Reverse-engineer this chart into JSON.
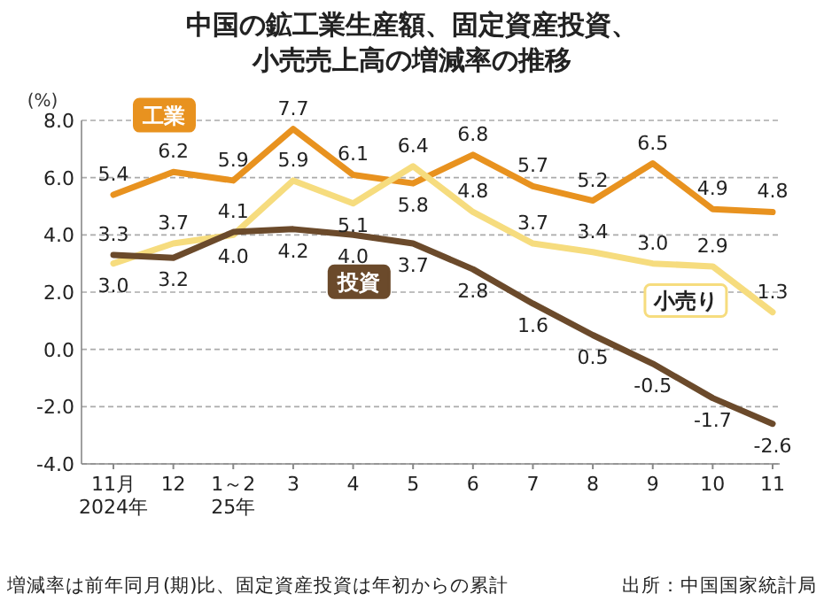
{
  "chart_data": {
    "type": "line",
    "title": "中国の鉱工業生産額、固定資産投資、小売売上高の増減率の推移",
    "ylabel": "(%)",
    "categories": [
      "11月\n2024年",
      "12",
      "1～2\n25年",
      "3",
      "4",
      "5",
      "6",
      "7",
      "8",
      "9",
      "10",
      "11"
    ],
    "series": [
      {
        "name": "工業",
        "color": "#e8921f",
        "values": [
          5.4,
          6.2,
          5.9,
          7.7,
          6.1,
          5.8,
          6.8,
          5.7,
          5.2,
          6.5,
          4.9,
          4.8
        ],
        "value_labels": [
          "5.4",
          "6.2",
          "5.9",
          "7.7",
          "6.1",
          "5.8",
          "6.8",
          "5.7",
          "5.2",
          "6.5",
          "4.9",
          "4.8"
        ]
      },
      {
        "name": "小売り",
        "color": "#f6dc7e",
        "values": [
          3.0,
          3.7,
          4.0,
          5.9,
          5.1,
          6.4,
          4.8,
          3.7,
          3.4,
          3.0,
          2.9,
          1.3
        ],
        "value_labels": [
          "3.0",
          "3.7",
          "4.0",
          "5.9",
          "5.1",
          "6.4",
          "4.8",
          "3.7",
          "3.4",
          "3.0",
          "2.9",
          "1.3"
        ]
      },
      {
        "name": "投資",
        "color": "#6b4a2b",
        "values": [
          3.3,
          3.2,
          4.1,
          4.2,
          4.0,
          3.7,
          2.8,
          1.6,
          0.5,
          -0.5,
          -1.7,
          -2.6
        ],
        "value_labels": [
          "3.3",
          "3.2",
          "4.1",
          "4.2",
          "4.0",
          "3.7",
          "2.8",
          "1.6",
          "0.5",
          "-0.5",
          "-1.7",
          "-2.6"
        ]
      }
    ],
    "ylim": [
      -4,
      8
    ],
    "yticks": [
      {
        "value": -4,
        "label": "-4.0"
      },
      {
        "value": -2,
        "label": "-2.0"
      },
      {
        "value": 0,
        "label": "0.0"
      },
      {
        "value": 2,
        "label": "2.0"
      },
      {
        "value": 4,
        "label": "4.0"
      },
      {
        "value": 6,
        "label": "6.0"
      },
      {
        "value": 8,
        "label": "8.0"
      }
    ],
    "grid": "y",
    "legend": false,
    "annotations": [
      "増減率は前年同月(期)比、固定資産投資は年初からの累計",
      "出所：中国国家統計局"
    ]
  }
}
